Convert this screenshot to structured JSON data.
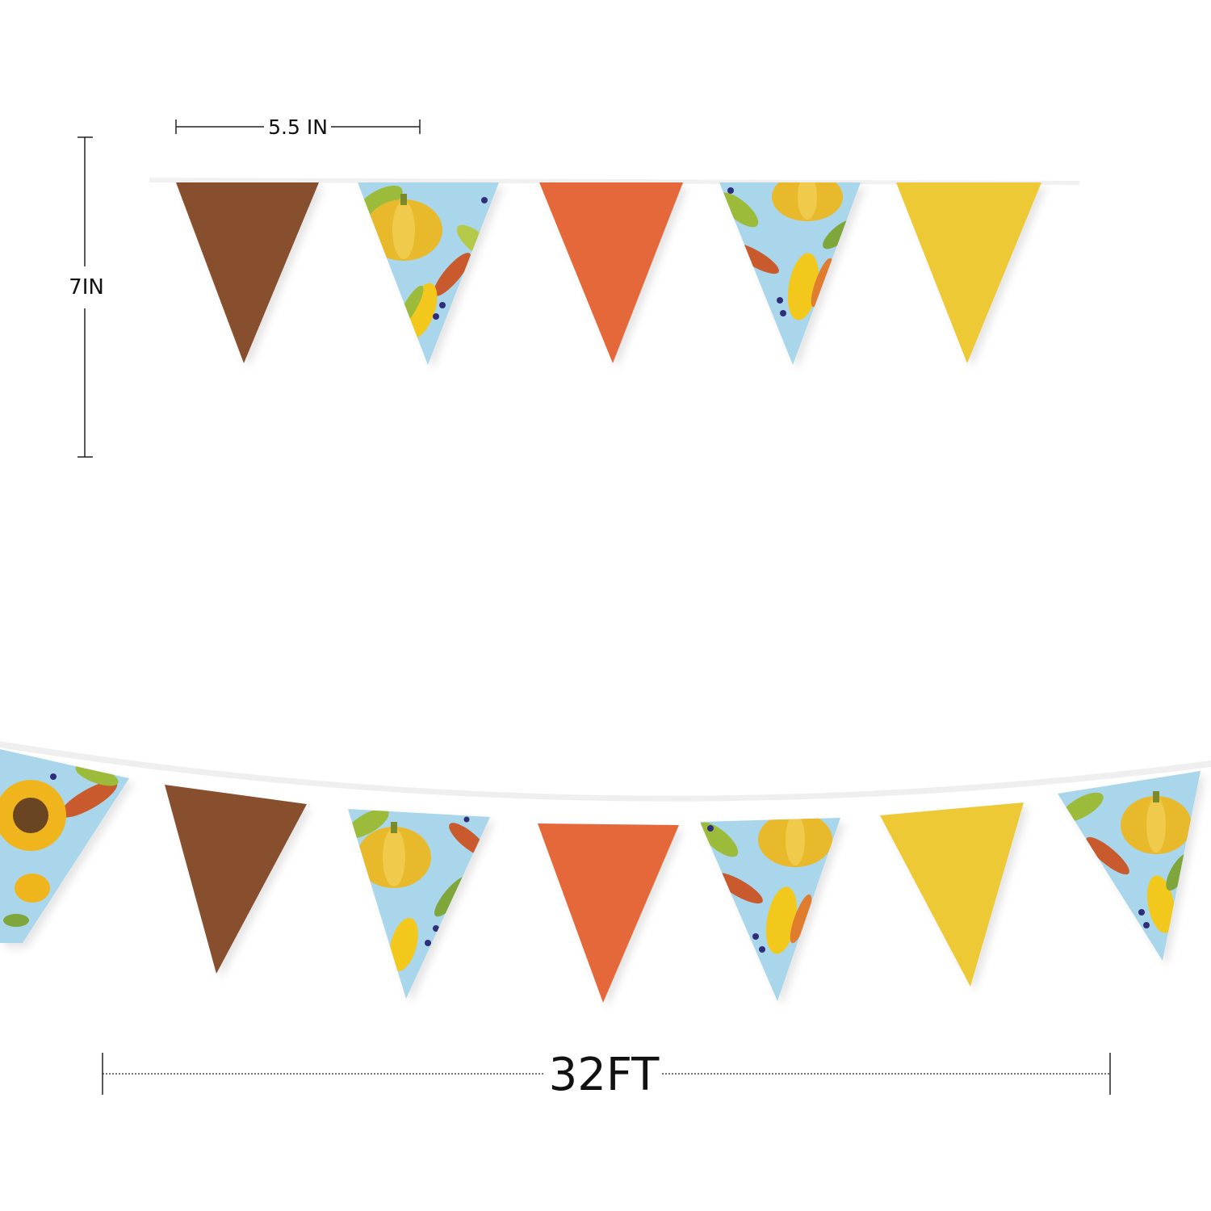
{
  "dimensions": {
    "flag_width": "5.5 IN",
    "flag_height": "7IN",
    "total_length": "32FT"
  },
  "colors": {
    "background": "#ffffff",
    "string": "#f2f2f2",
    "brown": "#87502f",
    "orange": "#e5683a",
    "yellow": "#ecc934",
    "pattern_sky": "#a9d6ea",
    "pattern_pumpkin": "#e8b92a",
    "pattern_leaf_green": "#9dbb3a",
    "pattern_leaf_red": "#c95a2e",
    "pattern_berry": "#2f2f7a",
    "sunflower_petal": "#f0b41c",
    "sunflower_center": "#6b4420",
    "dimension_line": "#222222"
  },
  "top_garland": {
    "flags": [
      "brown",
      "pattern-pumpkin",
      "orange",
      "pattern-pumpkin",
      "yellow"
    ]
  },
  "bottom_garland": {
    "flags": [
      "pattern-sunflower",
      "brown",
      "pattern-pumpkin",
      "orange",
      "pattern-pumpkin",
      "yellow",
      "pattern-pumpkin"
    ]
  }
}
